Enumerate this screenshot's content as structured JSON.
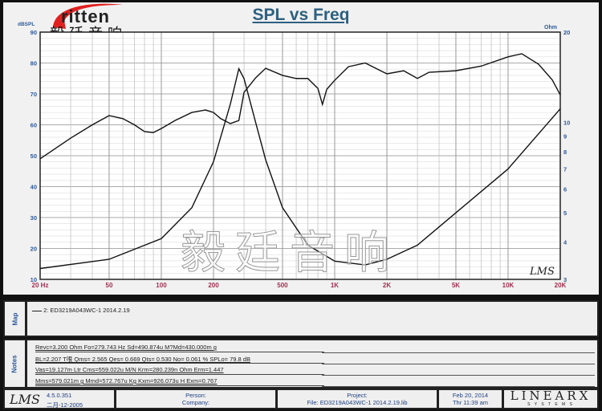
{
  "logo": {
    "brand": "ritten",
    "cn": "毅廷音响",
    "accent": "#e02020"
  },
  "watermark": "毅廷音响",
  "chart_data": {
    "type": "line",
    "title": "SPL vs Freq",
    "xscale": "log",
    "xlim": [
      20,
      20000
    ],
    "xticks": [
      "20 Hz",
      "50",
      "100",
      "200",
      "500",
      "1K",
      "2K",
      "5K",
      "10K",
      "20K"
    ],
    "ylabel_left": "dBSPL",
    "ylim_left": [
      10,
      90
    ],
    "yticks_left": [
      "90",
      "80",
      "70",
      "60",
      "50",
      "40",
      "30",
      "20",
      "10"
    ],
    "ylabel_right": "Ohm",
    "yscale_right": "log",
    "ylim_right": [
      3,
      20
    ],
    "yticks_right": [
      "20",
      "10",
      "9",
      "8",
      "7",
      "6",
      "5",
      "4",
      "3"
    ],
    "grid": true,
    "series": [
      {
        "axis": "left",
        "x": [
          20,
          30,
          40,
          50,
          60,
          70,
          80,
          90,
          100,
          120,
          150,
          180,
          200,
          220,
          250,
          280,
          300,
          350,
          400,
          500,
          600,
          700,
          800,
          850,
          900,
          1000,
          1200,
          1500,
          2000,
          2500,
          3000,
          3500,
          5000,
          7000,
          10000,
          12000,
          15000,
          18000,
          20000
        ],
        "y": [
          49,
          55.7,
          60,
          63,
          62,
          60,
          57.8,
          57.5,
          58.8,
          61.4,
          64,
          64.8,
          64,
          62,
          60.4,
          61.4,
          70.5,
          75.2,
          78.3,
          76,
          75,
          75,
          71.8,
          66.6,
          71.5,
          74.4,
          78.8,
          80,
          76.5,
          77.5,
          75,
          77,
          77.5,
          79,
          82,
          83,
          79.6,
          74.5,
          69.7
        ]
      },
      {
        "axis": "right",
        "x": [
          20,
          50,
          100,
          150,
          200,
          250,
          280,
          300,
          350,
          400,
          500,
          700,
          1000,
          1500,
          2000,
          3000,
          5000,
          10000,
          20000
        ],
        "y": [
          3.26,
          3.5,
          4.1,
          5.2,
          7.4,
          11.5,
          15.1,
          14,
          10,
          7.5,
          5.2,
          3.9,
          3.45,
          3.35,
          3.5,
          3.9,
          5.0,
          7.0,
          11.1
        ]
      }
    ],
    "annotation": "LMS"
  },
  "map": {
    "label": "Map",
    "entry": "2: ED3219A043WC-1      2014.2.19"
  },
  "notes": {
    "label": "Notes",
    "lines": [
      "Revc=3.200 Ohm  Fo=279.743 Hz  Sd=490.874u M?Md=430.000m g",
      "BL=2.207 T哏  Qms= 2.565  Qes= 0.669  Qts= 0.530  No= 0.061 %  SPLo= 79.8 dB",
      "Vas=19.127m Ltr  Cms=559.022u M/N  Krm=280.239n Ohm  Erm=1.447",
      "Mms=579.021m g  Mmd=572.767u Kg  Kxm=926.073u H  Exm=0.767"
    ]
  },
  "footer": {
    "lms": "LMS",
    "version": "4.5.0.351",
    "build": "二月-12-2005",
    "person": "Person:",
    "company": "Company:",
    "project": "Project:",
    "file": "File: ED3219A043WC-1  2014.2.19.lib",
    "date": "Feb 20, 2014",
    "time": "Thr 11:39 am",
    "brand": "LINEARX",
    "brand_sub": "S Y S T E M S"
  }
}
